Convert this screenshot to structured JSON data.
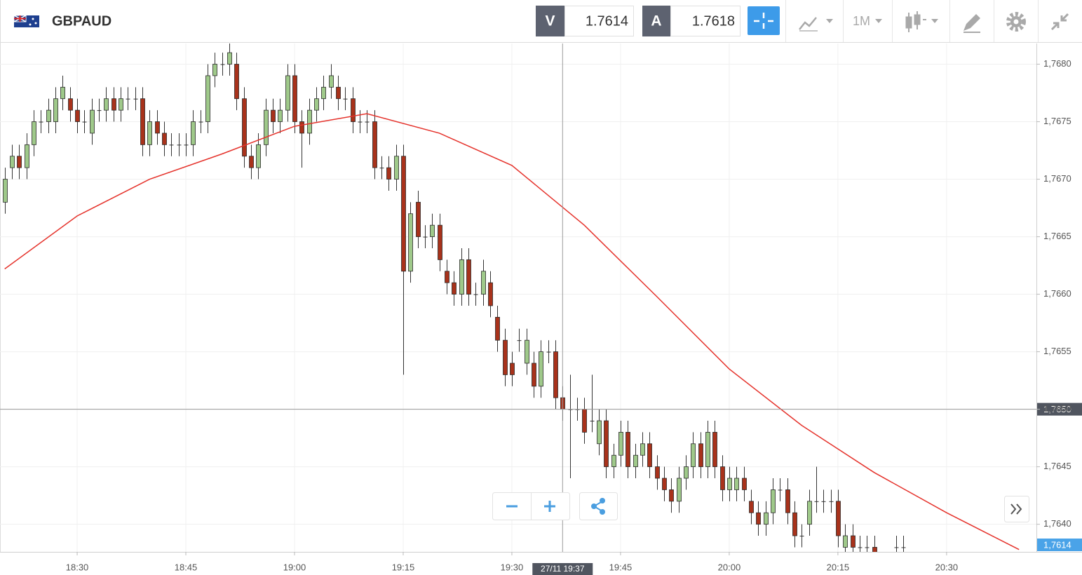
{
  "top_bar": {
    "symbol": "GBPAUD",
    "sell_label": "V",
    "sell": 1.7614,
    "buy_label": "A",
    "buy": 1.7618,
    "timeframe": "1M"
  },
  "chart_data": {
    "type": "candlestick",
    "x": [
      1100,
      1101,
      1102,
      1103,
      1104,
      1105,
      1106,
      1107,
      1108,
      1109,
      1110,
      1111,
      1112,
      1113,
      1114,
      1115,
      1116,
      1117,
      1118,
      1119,
      1120,
      1121,
      1122,
      1123,
      1124,
      1125,
      1126,
      1127,
      1128,
      1129,
      1130,
      1131,
      1132,
      1133,
      1134,
      1135,
      1136,
      1137,
      1138,
      1139,
      1140,
      1141,
      1142,
      1143,
      1144,
      1145,
      1146,
      1147,
      1148,
      1149,
      1150,
      1151,
      1152,
      1153,
      1154,
      1155,
      1156,
      1157,
      1158,
      1159,
      1160,
      1161,
      1162,
      1163,
      1164,
      1165,
      1166,
      1167,
      1168,
      1169,
      1170,
      1171,
      1172,
      1173,
      1174,
      1175,
      1176,
      1177,
      1178,
      1179,
      1180,
      1181,
      1182,
      1183,
      1184,
      1185,
      1186,
      1187,
      1188,
      1189,
      1190,
      1191,
      1192,
      1193,
      1194,
      1195,
      1196,
      1197,
      1198,
      1199,
      1200,
      1201,
      1202,
      1203,
      1204,
      1205,
      1206,
      1207,
      1208,
      1209,
      1210,
      1211,
      1212,
      1213,
      1214,
      1215,
      1216,
      1217,
      1218,
      1219,
      1220,
      1221,
      1222,
      1223,
      1224
    ],
    "open": [
      1.7668,
      1.7671,
      1.7672,
      1.7671,
      1.7673,
      1.7675,
      1.7675,
      1.7675,
      1.7677,
      1.7677,
      1.7676,
      1.7675,
      1.7674,
      1.7676,
      1.7676,
      1.7677,
      1.7676,
      1.7677,
      1.7677,
      1.7677,
      1.7673,
      1.7675,
      1.7674,
      1.7673,
      1.7673,
      1.7673,
      1.7673,
      1.7675,
      1.7675,
      1.7679,
      1.768,
      1.768,
      1.768,
      1.7677,
      1.7672,
      1.7671,
      1.7673,
      1.7676,
      1.7675,
      1.7676,
      1.7679,
      1.7675,
      1.7674,
      1.7676,
      1.7677,
      1.7678,
      1.7678,
      1.7677,
      1.7677,
      1.7675,
      1.7675,
      1.7675,
      1.7671,
      1.7671,
      1.767,
      1.7672,
      1.7662,
      1.7668,
      1.7665,
      1.7665,
      1.7666,
      1.7662,
      1.7661,
      1.766,
      1.7663,
      1.766,
      1.766,
      1.7661,
      1.7658,
      1.7656,
      1.7654,
      1.7656,
      1.7654,
      1.7654,
      1.7652,
      1.7655,
      1.7655,
      1.7651,
      1.765,
      1.765,
      1.765,
      1.7649,
      1.7647,
      1.7649,
      1.7645,
      1.7646,
      1.7648,
      1.7645,
      1.7646,
      1.7647,
      1.7645,
      1.7644,
      1.7643,
      1.7642,
      1.7644,
      1.7645,
      1.7647,
      1.7645,
      1.7648,
      1.7645,
      1.7643,
      1.7643,
      1.7644,
      1.7642,
      1.7641,
      1.764,
      1.7641,
      1.7643,
      1.7643,
      1.7641,
      1.7639,
      1.764,
      1.7642,
      1.7642,
      1.7642,
      1.7642,
      1.7638,
      1.7639,
      1.7638,
      1.7638,
      1.7638,
      null,
      null,
      1.7638,
      1.7638
    ],
    "high": [
      1.7671,
      1.7673,
      1.7673,
      1.7674,
      1.7676,
      1.7676,
      1.7677,
      1.7678,
      1.7679,
      1.7678,
      1.7677,
      1.7676,
      1.7677,
      1.7677,
      1.7678,
      1.7678,
      1.7678,
      1.7678,
      1.7678,
      1.7678,
      1.7676,
      1.7676,
      1.7675,
      1.7674,
      1.7674,
      1.7674,
      1.7676,
      1.7676,
      1.768,
      1.7681,
      1.7681,
      1.7682,
      1.7681,
      1.7678,
      1.7673,
      1.7674,
      1.7677,
      1.7677,
      1.7677,
      1.768,
      1.768,
      1.7676,
      1.7677,
      1.7678,
      1.7679,
      1.768,
      1.7679,
      1.7678,
      1.7678,
      1.7676,
      1.7676,
      1.7676,
      1.7672,
      1.7672,
      1.7673,
      1.7673,
      1.7668,
      1.7669,
      1.7666,
      1.7667,
      1.7667,
      1.7663,
      1.7662,
      1.7664,
      1.7664,
      1.7661,
      1.7663,
      1.7662,
      1.7659,
      1.7657,
      1.7655,
      1.7657,
      1.7657,
      1.7655,
      1.7656,
      1.7656,
      1.7656,
      1.7652,
      1.7653,
      1.7651,
      1.7651,
      1.7653,
      1.765,
      1.765,
      1.7647,
      1.7649,
      1.7649,
      1.7647,
      1.7648,
      1.7648,
      1.7646,
      1.7645,
      1.7644,
      1.7645,
      1.7646,
      1.7648,
      1.7648,
      1.7649,
      1.7649,
      1.7646,
      1.7645,
      1.7645,
      1.7645,
      1.7643,
      1.7642,
      1.7642,
      1.7644,
      1.7644,
      1.7644,
      1.7642,
      1.764,
      1.7643,
      1.7645,
      1.7643,
      1.7643,
      1.7643,
      1.764,
      1.764,
      1.7639,
      1.7639,
      1.7639,
      null,
      null,
      1.7639,
      1.7639
    ],
    "low": [
      1.7667,
      1.767,
      1.767,
      1.767,
      1.7672,
      1.7674,
      1.7674,
      1.7674,
      1.7676,
      1.7675,
      1.7674,
      1.7674,
      1.7673,
      1.7675,
      1.7675,
      1.7675,
      1.7675,
      1.7676,
      1.7676,
      1.7672,
      1.7672,
      1.7673,
      1.7672,
      1.7672,
      1.7672,
      1.7672,
      1.7672,
      1.7674,
      1.7674,
      1.7678,
      1.7679,
      1.7679,
      1.7676,
      1.7671,
      1.767,
      1.767,
      1.7672,
      1.7674,
      1.7674,
      1.7675,
      1.7674,
      1.7671,
      1.7673,
      1.7675,
      1.7676,
      1.7677,
      1.7676,
      1.7676,
      1.7674,
      1.7674,
      1.7674,
      1.767,
      1.767,
      1.7669,
      1.7669,
      1.7653,
      1.7661,
      1.7664,
      1.7664,
      1.7664,
      1.7662,
      1.766,
      1.7659,
      1.7659,
      1.7659,
      1.7659,
      1.7659,
      1.7658,
      1.7655,
      1.7652,
      1.7652,
      1.7655,
      1.7653,
      1.7651,
      1.7651,
      1.7654,
      1.765,
      1.7649,
      1.7644,
      1.7649,
      1.7647,
      1.7648,
      1.7646,
      1.7644,
      1.7644,
      1.7645,
      1.7644,
      1.7644,
      1.7645,
      1.7644,
      1.7643,
      1.7642,
      1.7641,
      1.7641,
      1.7643,
      1.7644,
      1.7644,
      1.7644,
      1.7644,
      1.7642,
      1.7642,
      1.7642,
      1.7642,
      1.764,
      1.7639,
      1.7639,
      1.764,
      1.7642,
      1.764,
      1.7638,
      1.7638,
      1.7639,
      1.7641,
      1.7641,
      1.7641,
      1.7638,
      1.7637,
      1.7637,
      1.7637,
      1.7637,
      1.7636,
      null,
      null,
      1.7637,
      1.7637
    ],
    "close": [
      1.767,
      1.7672,
      1.7671,
      1.7673,
      1.7675,
      1.7675,
      1.7676,
      1.7677,
      1.7678,
      1.7676,
      1.7675,
      1.7675,
      1.7676,
      1.7676,
      1.7677,
      1.7676,
      1.7677,
      1.7677,
      1.7677,
      1.7673,
      1.7675,
      1.7674,
      1.7673,
      1.7673,
      1.7673,
      1.7673,
      1.7675,
      1.7675,
      1.7679,
      1.768,
      1.768,
      1.7681,
      1.7677,
      1.7672,
      1.7671,
      1.7673,
      1.7676,
      1.7675,
      1.7676,
      1.7679,
      1.7675,
      1.7674,
      1.7676,
      1.7677,
      1.7678,
      1.7679,
      1.7677,
      1.7677,
      1.7675,
      1.7675,
      1.7675,
      1.7671,
      1.7671,
      1.767,
      1.7672,
      1.7662,
      1.7667,
      1.7665,
      1.7665,
      1.7666,
      1.7663,
      1.7661,
      1.766,
      1.7663,
      1.766,
      1.766,
      1.7662,
      1.7659,
      1.7656,
      1.7653,
      1.7653,
      1.7656,
      1.7656,
      1.7652,
      1.7655,
      1.7655,
      1.7651,
      1.765,
      1.765,
      1.765,
      1.7648,
      1.7649,
      1.7649,
      1.7645,
      1.7646,
      1.7648,
      1.7645,
      1.7646,
      1.7647,
      1.7645,
      1.7644,
      1.7643,
      1.7642,
      1.7644,
      1.7645,
      1.7647,
      1.7645,
      1.7648,
      1.7645,
      1.7643,
      1.7644,
      1.7644,
      1.7643,
      1.7641,
      1.764,
      1.7641,
      1.7643,
      1.7643,
      1.7641,
      1.7639,
      1.7639,
      1.7642,
      1.7642,
      1.7642,
      1.7642,
      1.7639,
      1.7639,
      1.7638,
      1.7638,
      1.7638,
      1.7637,
      null,
      null,
      1.7638,
      1.7638
    ],
    "up_color": "#9fc98a",
    "down_color": "#a8321b",
    "xlim": [
      1099.35,
      1242.4
    ],
    "xticks": [
      {
        "value": 1110,
        "label": "18:30"
      },
      {
        "value": 1125,
        "label": "18:45"
      },
      {
        "value": 1140,
        "label": "19:00"
      },
      {
        "value": 1155,
        "label": "19:15"
      },
      {
        "value": 1170,
        "label": "19:30"
      },
      {
        "value": 1185,
        "label": "19:45"
      },
      {
        "value": 1200,
        "label": "20:00"
      },
      {
        "value": 1215,
        "label": "20:15"
      },
      {
        "value": 1230,
        "label": "20:30"
      }
    ],
    "ylim": [
      1.76376,
      1.76818
    ],
    "yticks": [
      {
        "value": 1.764,
        "label": "1,7640"
      },
      {
        "value": 1.7645,
        "label": "1,7645"
      },
      {
        "value": 1.765,
        "label": "1,7650"
      },
      {
        "value": 1.7655,
        "label": "1,7655"
      },
      {
        "value": 1.766,
        "label": "1,7660"
      },
      {
        "value": 1.7665,
        "label": "1,7665"
      },
      {
        "value": 1.767,
        "label": "1,7670"
      },
      {
        "value": 1.7675,
        "label": "1,7675"
      },
      {
        "value": 1.768,
        "label": "1,7680"
      }
    ],
    "grid": true,
    "series": [
      {
        "color": "#e5322b",
        "x": [
          1100,
          1110,
          1120,
          1130,
          1140,
          1150,
          1160,
          1170,
          1180,
          1190,
          1200,
          1210,
          1220,
          1230,
          1240
        ],
        "values": [
          1.76622,
          1.76668,
          1.767,
          1.76722,
          1.76746,
          1.76757,
          1.7674,
          1.76712,
          1.7666,
          1.76598,
          1.76535,
          1.76486,
          1.76445,
          1.7641,
          1.76378
        ]
      }
    ],
    "crosshair": {
      "x": {
        "value": 1177,
        "label": "27/11 19:37"
      },
      "y": {
        "value": 1.765,
        "label": "1,7650"
      }
    },
    "last_price": {
      "value": 1.7614,
      "label": "1,7614"
    }
  }
}
